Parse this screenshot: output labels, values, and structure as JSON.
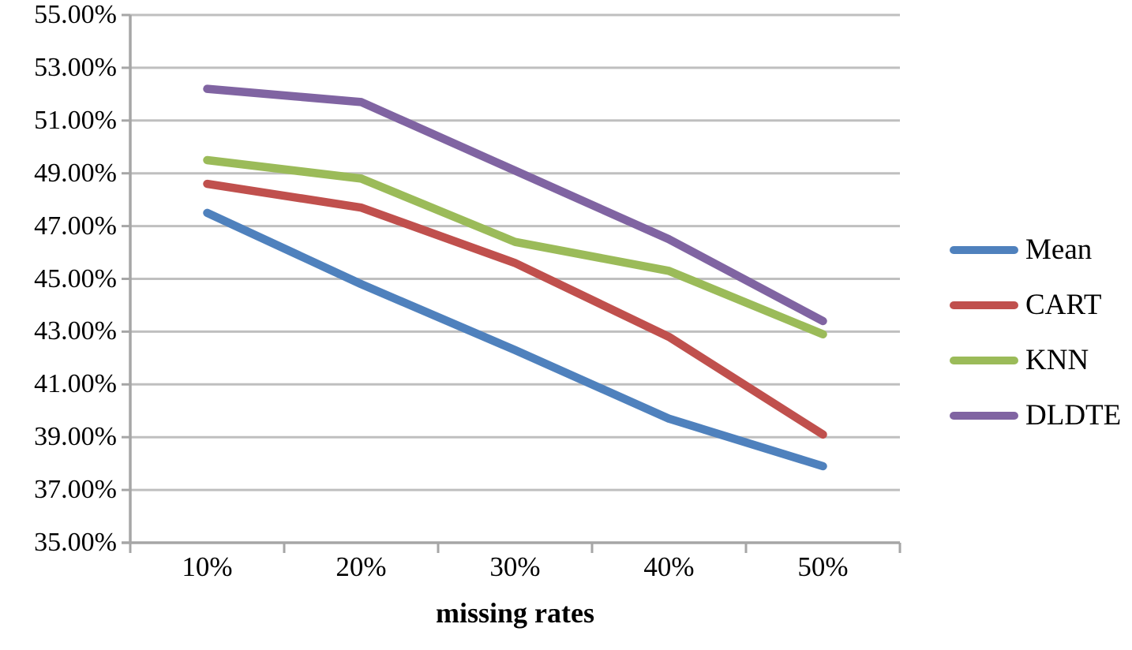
{
  "chart_data": {
    "type": "line",
    "title": "",
    "xlabel": "missing rates",
    "ylabel": "",
    "categories": [
      "10%",
      "20%",
      "30%",
      "40%",
      "50%"
    ],
    "series": [
      {
        "name": "Mean",
        "color": "#4F81BD",
        "values": [
          47.5,
          44.8,
          42.3,
          39.7,
          37.9
        ]
      },
      {
        "name": "CART",
        "color": "#C0504D",
        "values": [
          48.6,
          47.7,
          45.6,
          42.8,
          39.1
        ]
      },
      {
        "name": "KNN",
        "color": "#9BBB59",
        "values": [
          49.5,
          48.8,
          46.4,
          45.3,
          42.9
        ]
      },
      {
        "name": "DLDTE",
        "color": "#8064A2",
        "values": [
          52.2,
          51.7,
          49.1,
          46.5,
          43.4
        ]
      }
    ],
    "y_axis": {
      "min": 35,
      "max": 55,
      "step": 2,
      "tick_labels": [
        "55.00%",
        "53.00%",
        "51.00%",
        "49.00%",
        "47.00%",
        "45.00%",
        "43.00%",
        "41.00%",
        "39.00%",
        "37.00%",
        "35.00%"
      ]
    },
    "x_axis": {
      "tick_labels": [
        "10%",
        "20%",
        "30%",
        "40%",
        "50%"
      ]
    },
    "grid": true,
    "legend_position": "right",
    "line_width": 10.5,
    "colors": {
      "gridline": "#BFBFBF",
      "axis": "#A6A6A6",
      "text": "#000000",
      "background": "#FFFFFF"
    }
  }
}
